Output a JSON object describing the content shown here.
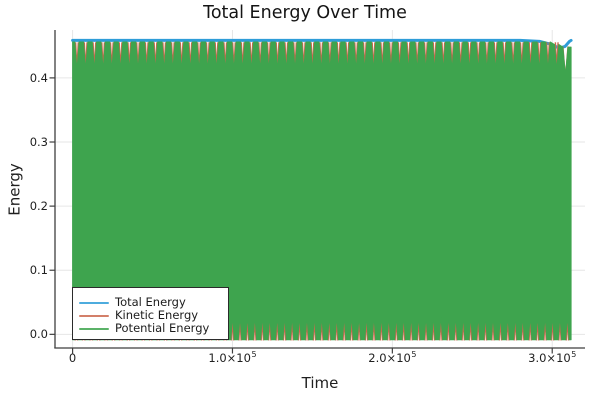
{
  "chart_data": {
    "type": "line",
    "title": "Total Energy Over Time",
    "xlabel": "Time",
    "ylabel": "Energy",
    "xlim": [
      -11000,
      320500
    ],
    "ylim": [
      -0.0213,
      0.4747
    ],
    "grid": true,
    "legend_position": "bottom-left",
    "x_ticks": {
      "values": [
        0,
        100000,
        200000,
        300000
      ],
      "labels": [
        {
          "main": "0",
          "sup": ""
        },
        {
          "main": "1.0×10",
          "sup": "5"
        },
        {
          "main": "2.0×10",
          "sup": "5"
        },
        {
          "main": "3.0×10",
          "sup": "5"
        }
      ]
    },
    "y_ticks": {
      "values": [
        0.0,
        0.1,
        0.2,
        0.3,
        0.4
      ],
      "labels": [
        "0.0",
        "0.1",
        "0.2",
        "0.3",
        "0.4"
      ]
    },
    "colors": {
      "total": "#2E9DD8",
      "kinetic": "#CB694F",
      "potential": "#3EA44E",
      "grid": "#e6e6e6",
      "spine": "#3f3f3f",
      "text": "#1f1f1f"
    },
    "t_start": 0,
    "t_end": 311800,
    "series": [
      {
        "name": "Total Energy",
        "color": "#2E9DD8",
        "style": "line",
        "value": 0.4585,
        "points": [
          [
            0,
            0.4585
          ],
          [
            280000,
            0.4585
          ],
          [
            292000,
            0.457
          ],
          [
            299000,
            0.4525
          ],
          [
            304500,
            0.4465
          ],
          [
            308000,
            0.449
          ],
          [
            310800,
            0.457
          ],
          [
            311800,
            0.4585
          ]
        ]
      },
      {
        "name": "Kinetic Energy",
        "color": "#CB694F",
        "style": "spike-train",
        "description": "rapid oscillation between ~0 and ~0.455; visible as thin spikes inside the notches of the potential-energy fill",
        "top_spikes": {
          "n": 57,
          "spacing": 5456,
          "top": 0.4555,
          "bottom": 0.414,
          "halfwidth": 850,
          "last_spike": {
            "top": 0.449,
            "bottom": 0.398,
            "halfwidth": 1600
          }
        },
        "bottom_spikes": {
          "n": 67,
          "spacing": 4654,
          "top": 0.027,
          "bottom": -0.0095,
          "halfwidth": 700
        }
      },
      {
        "name": "Potential Energy",
        "color": "#3EA44E",
        "style": "filled-oscillation",
        "description": "rapid oscillation between ~0 and ~0.455 rendered as a solid green fill",
        "top_envelope": {
          "plateau": 0.456,
          "notch_bottom": 0.4125,
          "n_notches": 57,
          "spacing": 5456,
          "notch_halfwidth": 1350,
          "end_plateaus": [
            0.452,
            0.448
          ],
          "end_notch_bottom": 0.404,
          "end_notch_halfwidth": 1600
        },
        "bottom_envelope": {
          "base": -0.0085,
          "notch_top": 0.0285,
          "n_notches": 67,
          "spacing": 4654,
          "notch_halfwidth": 1100
        }
      }
    ],
    "legend": {
      "entries": [
        "Total Energy",
        "Kinetic Energy",
        "Potential Energy"
      ]
    }
  }
}
